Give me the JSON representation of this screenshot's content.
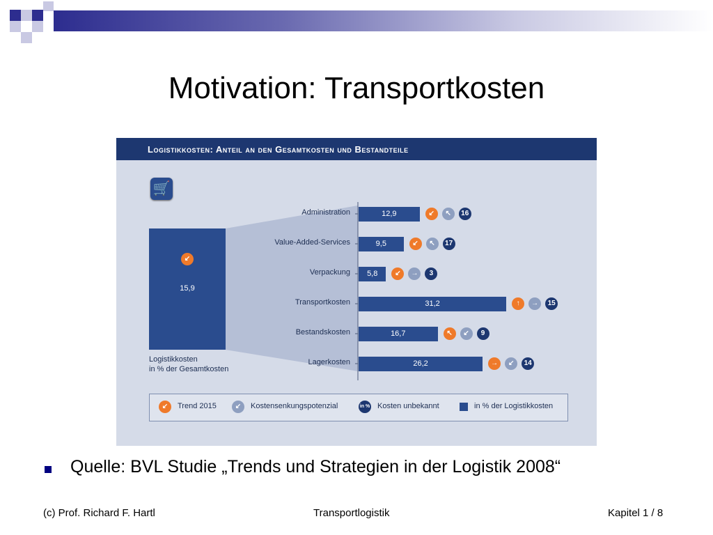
{
  "slide": {
    "title": "Motivation: Transportkosten",
    "source": "Quelle: BVL Studie „Trends und Strategien in der Logistik 2008“"
  },
  "footer": {
    "left": "(c) Prof. Richard F. Hartl",
    "center": "Transportlogistik",
    "right": "Kapitel 1 / 8"
  },
  "colors": {
    "navy": "#1d3770",
    "bar_blue": "#2a4c8e",
    "orange": "#ef7a2a",
    "gray_blue": "#8e9fc0",
    "panel_bg": "#d5dbe8"
  },
  "chart_data": {
    "type": "bar",
    "orientation": "horizontal",
    "title": "Logistikkosten: Anteil an den Gesamtkosten und Bestandteile",
    "total": {
      "value": 15.9,
      "value_label": "15,9",
      "caption_line1": "Logistikkosten",
      "caption_line2": "in % der Gesamtkosten",
      "trend_icon": "arrow-down-left"
    },
    "categories": [
      "Administration",
      "Value-Added-Services",
      "Verpackung",
      "Transportkosten",
      "Bestandskosten",
      "Lagerkosten"
    ],
    "values": [
      12.9,
      9.5,
      5.8,
      31.2,
      16.7,
      26.2
    ],
    "value_labels": [
      "12,9",
      "9,5",
      "5,8",
      "31,2",
      "16,7",
      "26,2"
    ],
    "trend_2015": [
      "arrow-down-left",
      "arrow-down-left",
      "arrow-down-left",
      "arrow-up",
      "arrow-up-left",
      "arrow-right"
    ],
    "savings_potential": [
      "arrow-up-left",
      "arrow-up-left",
      "arrow-right",
      "arrow-right",
      "arrow-down-left",
      "arrow-down-left"
    ],
    "cost_unknown": [
      16,
      17,
      3,
      15,
      9,
      14
    ],
    "xlim": [
      0,
      35
    ],
    "legend": [
      {
        "icon": "orange-circle",
        "label": "Trend 2015"
      },
      {
        "icon": "gray-circle",
        "label": "Kostensenkungspotenzial"
      },
      {
        "icon": "navy-circle",
        "badge": "in %",
        "label": "Kosten unbekannt"
      },
      {
        "icon": "navy-square",
        "label": "in % der Logistikkosten"
      }
    ]
  }
}
